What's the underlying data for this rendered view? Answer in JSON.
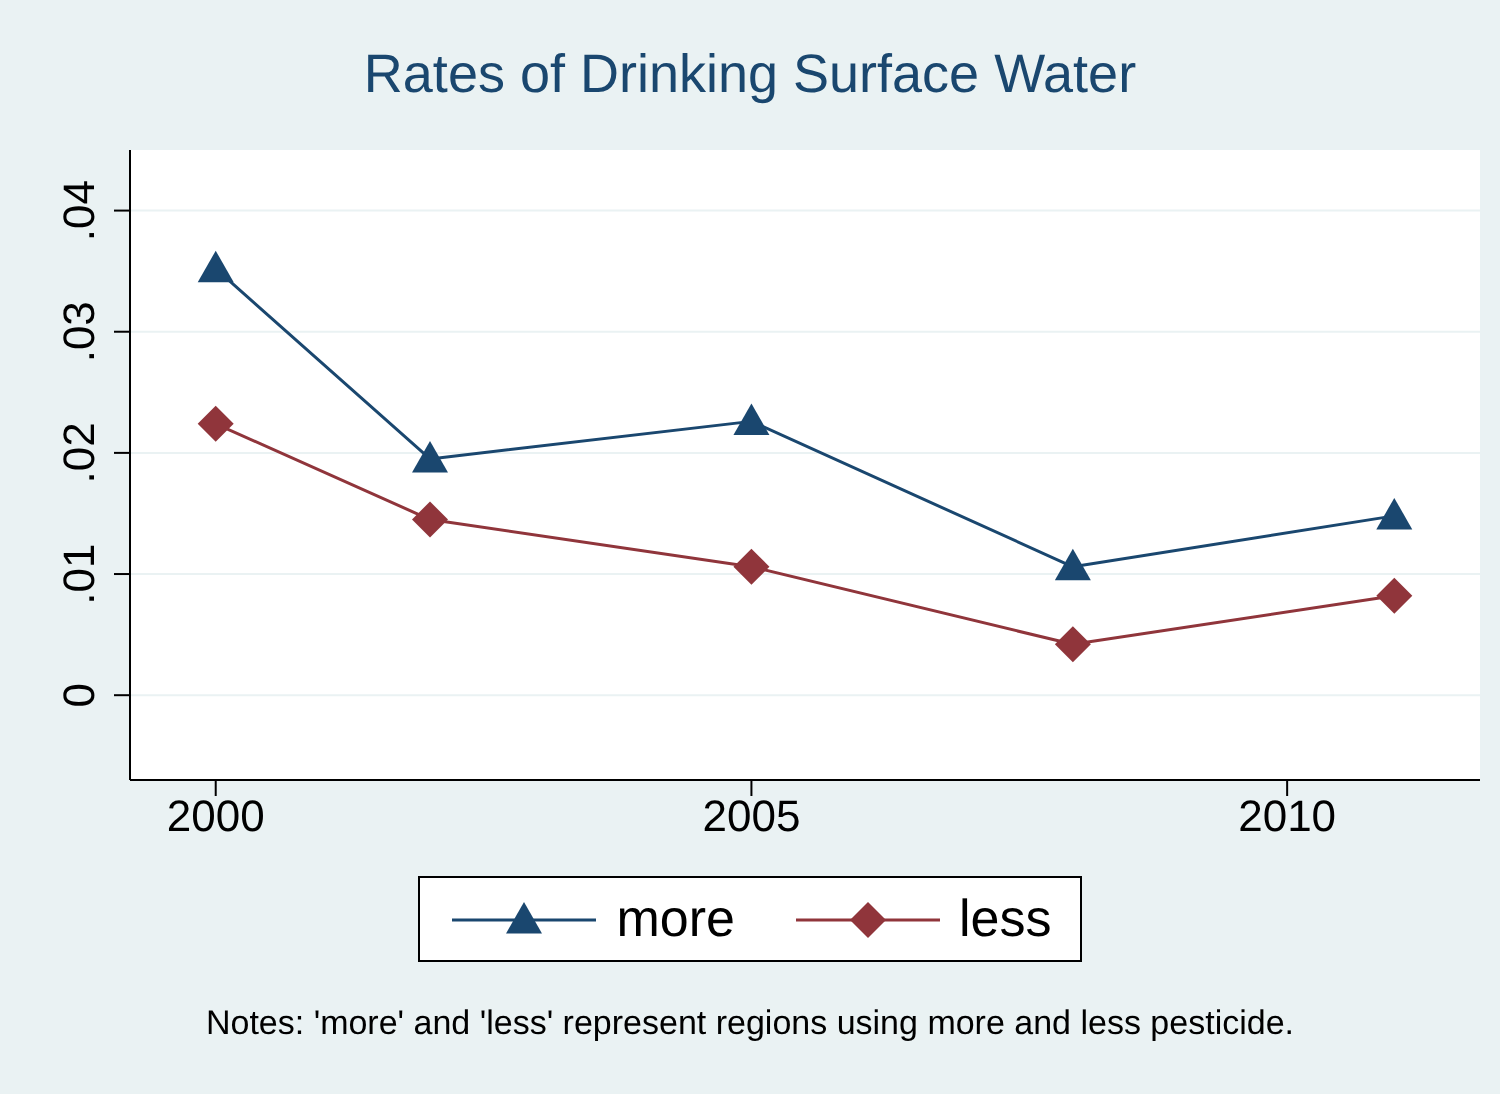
{
  "chart_data": {
    "type": "line",
    "title": "Rates of Drinking Surface Water",
    "x": [
      2000,
      2002,
      2005,
      2008,
      2011
    ],
    "series": [
      {
        "name": "more",
        "color": "#1a476f",
        "marker": "triangle",
        "values": [
          0.0352,
          0.0195,
          0.0226,
          0.0106,
          0.0148
        ]
      },
      {
        "name": "less",
        "color": "#90353b",
        "marker": "diamond",
        "values": [
          0.0224,
          0.0145,
          0.0106,
          0.0042,
          0.0082
        ]
      }
    ],
    "xlim": [
      1999.2,
      2011.8
    ],
    "xticks": [
      2000,
      2005,
      2010
    ],
    "ylim": [
      -0.007,
      0.045
    ],
    "yticks": [
      0,
      {
        "value": 0.01,
        "label": ".01"
      },
      {
        "value": 0.02,
        "label": ".02"
      },
      {
        "value": 0.03,
        "label": ".03"
      },
      {
        "value": 0.04,
        "label": ".04"
      }
    ],
    "grid": "y",
    "legend": "bottom",
    "line_style": "solid",
    "annotations": [
      "Notes: 'more' and 'less' represent regions using more and less pesticide."
    ]
  }
}
